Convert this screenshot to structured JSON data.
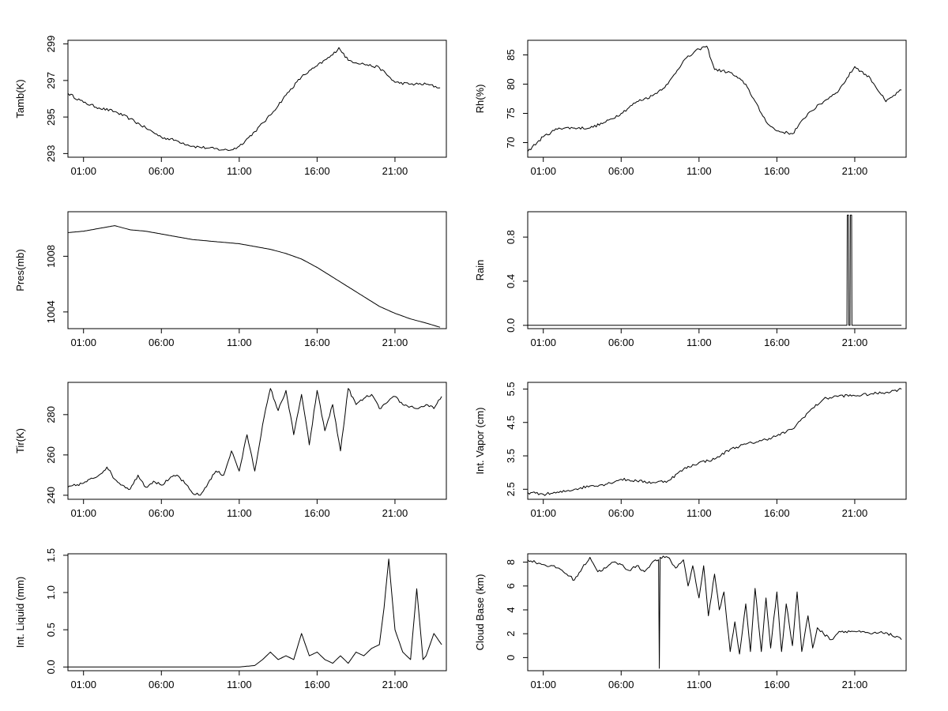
{
  "chart_data": [
    {
      "type": "line",
      "ylabel": "Tamb(K)",
      "x_ticks": [
        "01:00",
        "06:00",
        "11:00",
        "16:00",
        "21:00"
      ],
      "x_tick_hours": [
        1,
        6,
        11,
        16,
        21
      ],
      "xlim_hours": [
        0,
        24.3
      ],
      "y_ticks": [
        293,
        295,
        297,
        299
      ],
      "ylim": [
        292.8,
        299.2
      ],
      "series": [
        {
          "x": [
            0,
            1,
            2,
            3,
            4,
            5,
            6,
            7,
            8,
            9,
            10,
            10.5,
            11,
            12,
            13,
            14,
            15,
            16,
            17,
            17.4,
            18,
            19,
            20,
            21,
            22,
            23,
            23.9
          ],
          "y": [
            296.3,
            295.8,
            295.5,
            295.3,
            294.9,
            294.4,
            293.9,
            293.7,
            293.4,
            293.3,
            293.2,
            293.2,
            293.4,
            294.2,
            295.1,
            296.2,
            297.2,
            297.8,
            298.4,
            298.8,
            298.1,
            297.9,
            297.7,
            296.9,
            296.8,
            296.8,
            296.6
          ]
        }
      ]
    },
    {
      "type": "line",
      "ylabel": "Rh(%)",
      "x_ticks": [
        "01:00",
        "06:00",
        "11:00",
        "16:00",
        "21:00"
      ],
      "x_tick_hours": [
        1,
        6,
        11,
        16,
        21
      ],
      "xlim_hours": [
        0,
        24.3
      ],
      "y_ticks": [
        70,
        75,
        80,
        85
      ],
      "ylim": [
        67.5,
        87.5
      ],
      "series": [
        {
          "x": [
            0,
            1,
            2,
            3,
            4,
            5,
            6,
            7,
            8,
            9,
            10,
            11,
            11.5,
            12,
            13,
            14,
            15,
            15.5,
            16,
            17,
            18,
            19,
            20,
            21,
            22,
            23,
            24
          ],
          "y": [
            68.5,
            71,
            72.5,
            72.5,
            72.5,
            73.5,
            75,
            77,
            78,
            80,
            84,
            86,
            86.5,
            82.5,
            82,
            80,
            75,
            73,
            72,
            71.5,
            75,
            77,
            79,
            83,
            81,
            77,
            79
          ]
        }
      ]
    },
    {
      "type": "line",
      "ylabel": "Pres(mb)",
      "x_ticks": [
        "01:00",
        "06:00",
        "11:00",
        "16:00",
        "21:00"
      ],
      "x_tick_hours": [
        1,
        6,
        11,
        16,
        21
      ],
      "xlim_hours": [
        0,
        24.3
      ],
      "y_ticks": [
        1004,
        1008
      ],
      "ylim": [
        1002.8,
        1011.2
      ],
      "series": [
        {
          "x": [
            0,
            1,
            2,
            3,
            4,
            5,
            6,
            7,
            8,
            9,
            10,
            11,
            12,
            13,
            14,
            15,
            16,
            17,
            18,
            19,
            20,
            21,
            22,
            23,
            23.9
          ],
          "y": [
            1009.7,
            1009.8,
            1010,
            1010.2,
            1009.9,
            1009.8,
            1009.6,
            1009.4,
            1009.2,
            1009.1,
            1009,
            1008.9,
            1008.7,
            1008.5,
            1008.2,
            1007.8,
            1007.2,
            1006.5,
            1005.8,
            1005.1,
            1004.4,
            1003.9,
            1003.5,
            1003.2,
            1002.9
          ]
        }
      ]
    },
    {
      "type": "line",
      "ylabel": "Rain",
      "x_ticks": [
        "01:00",
        "06:00",
        "11:00",
        "16:00",
        "21:00"
      ],
      "x_tick_hours": [
        1,
        6,
        11,
        16,
        21
      ],
      "xlim_hours": [
        0,
        24.3
      ],
      "y_ticks": [
        0.0,
        0.4,
        0.8
      ],
      "y_tick_labels": [
        "0.0",
        "0.4",
        "0.8"
      ],
      "ylim": [
        -0.03,
        1.03
      ],
      "series": [
        {
          "x": [
            0,
            20.5,
            20.52,
            20.6,
            20.62,
            20.7,
            20.72,
            20.8,
            20.82,
            24
          ],
          "y": [
            0,
            0,
            1,
            1,
            0,
            0,
            1,
            1,
            0,
            0
          ]
        }
      ]
    },
    {
      "type": "line",
      "ylabel": "Tir(K)",
      "x_ticks": [
        "01:00",
        "06:00",
        "11:00",
        "16:00",
        "21:00"
      ],
      "x_tick_hours": [
        1,
        6,
        11,
        16,
        21
      ],
      "xlim_hours": [
        0,
        24.3
      ],
      "y_ticks": [
        240,
        260,
        280
      ],
      "ylim": [
        238,
        296
      ],
      "series": [
        {
          "x": [
            0,
            1,
            2,
            2.5,
            3,
            3.5,
            4,
            4.5,
            5,
            5.5,
            6,
            6.5,
            7,
            7.5,
            8,
            8.5,
            9,
            9.5,
            10,
            10.5,
            11,
            11.5,
            12,
            12.5,
            13,
            13.5,
            14,
            14.5,
            15,
            15.5,
            16,
            16.5,
            17,
            17.5,
            18,
            18.5,
            19,
            19.5,
            20,
            20.5,
            21,
            21.5,
            22,
            22.5,
            23,
            23.5,
            24
          ],
          "y": [
            244,
            246,
            250,
            254,
            248,
            245,
            243,
            250,
            244,
            247,
            245,
            248,
            250,
            246,
            241,
            240,
            246,
            252,
            250,
            262,
            252,
            270,
            252,
            275,
            293,
            282,
            292,
            270,
            290,
            265,
            292,
            272,
            285,
            262,
            293,
            285,
            288,
            290,
            283,
            286,
            289,
            285,
            284,
            283,
            285,
            283,
            289
          ]
        }
      ]
    },
    {
      "type": "line",
      "ylabel": "Int. Vapor (cm)",
      "x_ticks": [
        "01:00",
        "06:00",
        "11:00",
        "16:00",
        "21:00"
      ],
      "x_tick_hours": [
        1,
        6,
        11,
        16,
        21
      ],
      "xlim_hours": [
        0,
        24.3
      ],
      "y_ticks": [
        2.5,
        3.5,
        4.5,
        5.5
      ],
      "ylim": [
        2.2,
        5.7
      ],
      "series": [
        {
          "x": [
            0,
            1,
            2,
            3,
            4,
            5,
            6,
            7,
            8,
            9,
            10,
            11,
            12,
            13,
            14,
            15,
            16,
            17,
            18,
            19,
            20,
            21,
            22,
            23,
            24
          ],
          "y": [
            2.4,
            2.35,
            2.4,
            2.5,
            2.6,
            2.65,
            2.8,
            2.75,
            2.7,
            2.75,
            3.1,
            3.3,
            3.4,
            3.7,
            3.85,
            3.95,
            4.1,
            4.3,
            4.8,
            5.2,
            5.3,
            5.3,
            5.35,
            5.4,
            5.5
          ]
        }
      ]
    },
    {
      "type": "line",
      "ylabel": "Int. Liquid (mm)",
      "x_ticks": [
        "01:00",
        "06:00",
        "11:00",
        "16:00",
        "21:00"
      ],
      "x_tick_hours": [
        1,
        6,
        11,
        16,
        21
      ],
      "xlim_hours": [
        0,
        24.3
      ],
      "y_ticks": [
        0.0,
        0.5,
        1.0,
        1.5
      ],
      "y_tick_labels": [
        "0.0",
        "0.5",
        "1.0",
        "1.5"
      ],
      "ylim": [
        -0.05,
        1.52
      ],
      "series": [
        {
          "x": [
            0,
            11,
            12,
            12.5,
            13,
            13.5,
            14,
            14.5,
            15,
            15.5,
            16,
            16.5,
            17,
            17.5,
            18,
            18.5,
            19,
            19.5,
            20,
            20.3,
            20.6,
            21,
            21.5,
            22,
            22.4,
            22.8,
            23,
            23.5,
            24
          ],
          "y": [
            0,
            0,
            0.02,
            0.1,
            0.2,
            0.1,
            0.15,
            0.1,
            0.45,
            0.15,
            0.2,
            0.1,
            0.05,
            0.15,
            0.05,
            0.2,
            0.15,
            0.25,
            0.3,
            0.8,
            1.45,
            0.5,
            0.2,
            0.1,
            1.05,
            0.1,
            0.15,
            0.45,
            0.3
          ]
        }
      ]
    },
    {
      "type": "line",
      "ylabel": "Cloud Base (km)",
      "x_ticks": [
        "01:00",
        "06:00",
        "11:00",
        "16:00",
        "21:00"
      ],
      "x_tick_hours": [
        1,
        6,
        11,
        16,
        21
      ],
      "xlim_hours": [
        0,
        24.3
      ],
      "y_ticks": [
        0,
        2,
        4,
        6,
        8
      ],
      "ylim": [
        -1.1,
        8.7
      ],
      "series": [
        {
          "x": [
            0,
            1,
            2,
            2.5,
            3,
            3.5,
            4,
            4.5,
            5,
            5.5,
            6,
            6.5,
            7,
            7.5,
            8,
            8.4,
            8.45,
            8.5,
            9,
            9.5,
            10,
            10.3,
            10.6,
            11,
            11.3,
            11.6,
            12,
            12.3,
            12.6,
            13,
            13.3,
            13.6,
            14,
            14.3,
            14.6,
            15,
            15.3,
            15.6,
            16,
            16.3,
            16.6,
            17,
            17.3,
            17.6,
            18,
            18.3,
            18.6,
            19,
            19.5,
            20,
            21,
            22,
            23,
            24
          ],
          "y": [
            8.2,
            7.8,
            7.5,
            7,
            6.5,
            7.5,
            8.4,
            7.2,
            7.5,
            8,
            7.8,
            7.3,
            7.7,
            7.2,
            8,
            8.2,
            -0.9,
            8.4,
            8.4,
            7.5,
            8.2,
            6,
            7.7,
            5,
            7.7,
            3.5,
            7,
            4,
            5.5,
            0.5,
            3,
            0.3,
            4.5,
            0.5,
            5.8,
            0.5,
            5,
            0.8,
            5.5,
            0.5,
            4.5,
            1,
            5.5,
            0.5,
            3.5,
            0.8,
            2.5,
            2,
            1.5,
            2.2,
            2.2,
            2,
            2.1,
            1.5
          ]
        }
      ]
    }
  ]
}
